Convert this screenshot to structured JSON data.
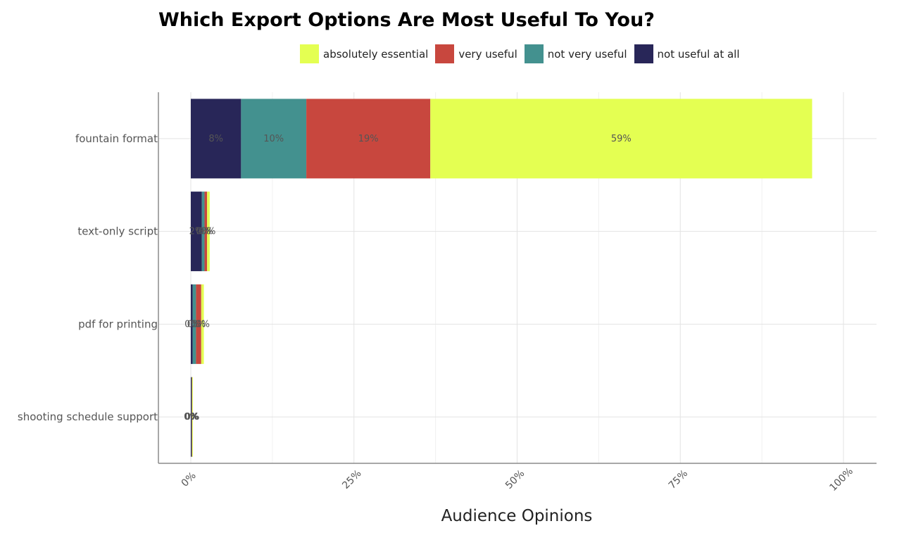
{
  "chart_data": {
    "type": "bar",
    "orientation": "horizontal",
    "stacked": true,
    "title": "Which Export Options Are Most Useful To You?",
    "xlabel": "Audience Opinions",
    "ylabel": "",
    "xlim": [
      0,
      1.05
    ],
    "x_tick_labels": [
      "0%",
      "25%",
      "50%",
      "75%",
      "100%"
    ],
    "x_ticks": [
      0,
      0.25,
      0.5,
      0.75,
      1.0
    ],
    "grid": true,
    "legend_position": "top",
    "categories": [
      "fountain format",
      "text-only script",
      "pdf for printing",
      "shooting schedule support"
    ],
    "series": [
      {
        "name": "not useful at all",
        "color": "#282658",
        "values": [
          0.077,
          0.017,
          0.003,
          0.001
        ],
        "labels": [
          "8%",
          "2%",
          "0%",
          "0%"
        ]
      },
      {
        "name": "not very useful",
        "color": "#43918f",
        "values": [
          0.1,
          0.004,
          0.005,
          0.0005
        ],
        "labels": [
          "10%",
          "0%",
          "0%",
          "0%"
        ]
      },
      {
        "name": "very useful",
        "color": "#c8473e",
        "values": [
          0.19,
          0.004,
          0.008,
          0.0005
        ],
        "labels": [
          "19%",
          "0%",
          "1%",
          "0%"
        ]
      },
      {
        "name": "absolutely essential",
        "color": "#e4ff52",
        "values": [
          0.585,
          0.004,
          0.004,
          0.0005
        ],
        "labels": [
          "59%",
          "0%",
          "0%",
          "0%"
        ]
      }
    ],
    "legend_order": [
      "absolutely essential",
      "very useful",
      "not very useful",
      "not useful at all"
    ]
  }
}
